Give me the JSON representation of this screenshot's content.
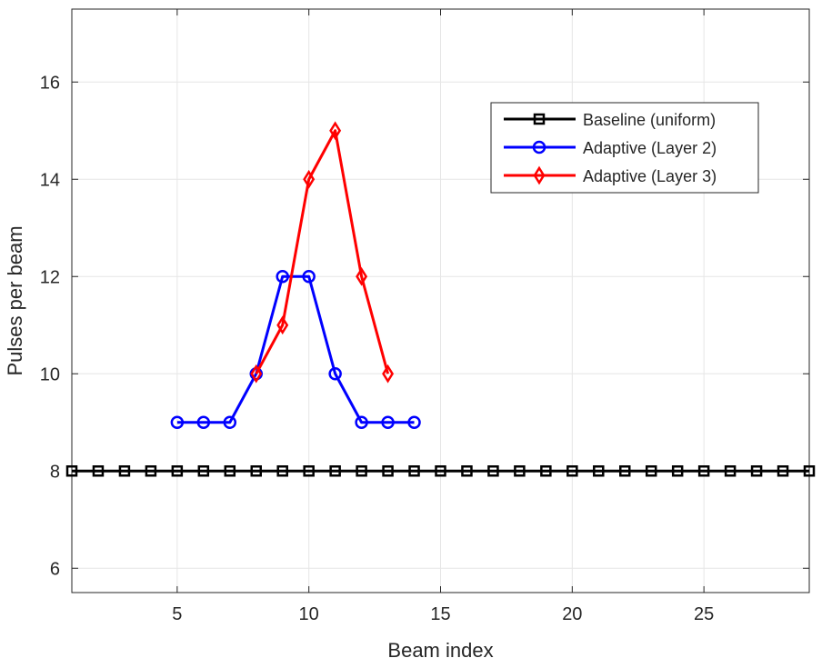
{
  "chart_data": {
    "type": "line",
    "title": "",
    "xlabel": "Beam index",
    "ylabel": "Pulses per beam",
    "xlim": [
      1,
      29
    ],
    "ylim": [
      5.5,
      17.5
    ],
    "xticks": [
      5,
      10,
      15,
      20,
      25
    ],
    "yticks": [
      6,
      8,
      10,
      12,
      14,
      16
    ],
    "grid": true,
    "legend_position": "top-right",
    "series": [
      {
        "name": "Baseline (uniform)",
        "color": "#000000",
        "marker": "square",
        "x": [
          1,
          2,
          3,
          4,
          5,
          6,
          7,
          8,
          9,
          10,
          11,
          12,
          13,
          14,
          15,
          16,
          17,
          18,
          19,
          20,
          21,
          22,
          23,
          24,
          25,
          26,
          27,
          28,
          29
        ],
        "y": [
          8,
          8,
          8,
          8,
          8,
          8,
          8,
          8,
          8,
          8,
          8,
          8,
          8,
          8,
          8,
          8,
          8,
          8,
          8,
          8,
          8,
          8,
          8,
          8,
          8,
          8,
          8,
          8,
          8
        ]
      },
      {
        "name": "Adaptive (Layer 2)",
        "color": "#0000FF",
        "marker": "circle",
        "x": [
          5,
          6,
          7,
          8,
          9,
          10,
          11,
          12,
          13,
          14
        ],
        "y": [
          9,
          9,
          9,
          10,
          12,
          12,
          10,
          9,
          9,
          9
        ]
      },
      {
        "name": "Adaptive (Layer 3)",
        "color": "#FF0000",
        "marker": "diamond",
        "x": [
          8,
          9,
          10,
          11,
          12,
          13
        ],
        "y": [
          10,
          11,
          14,
          15,
          12,
          10
        ]
      }
    ]
  }
}
